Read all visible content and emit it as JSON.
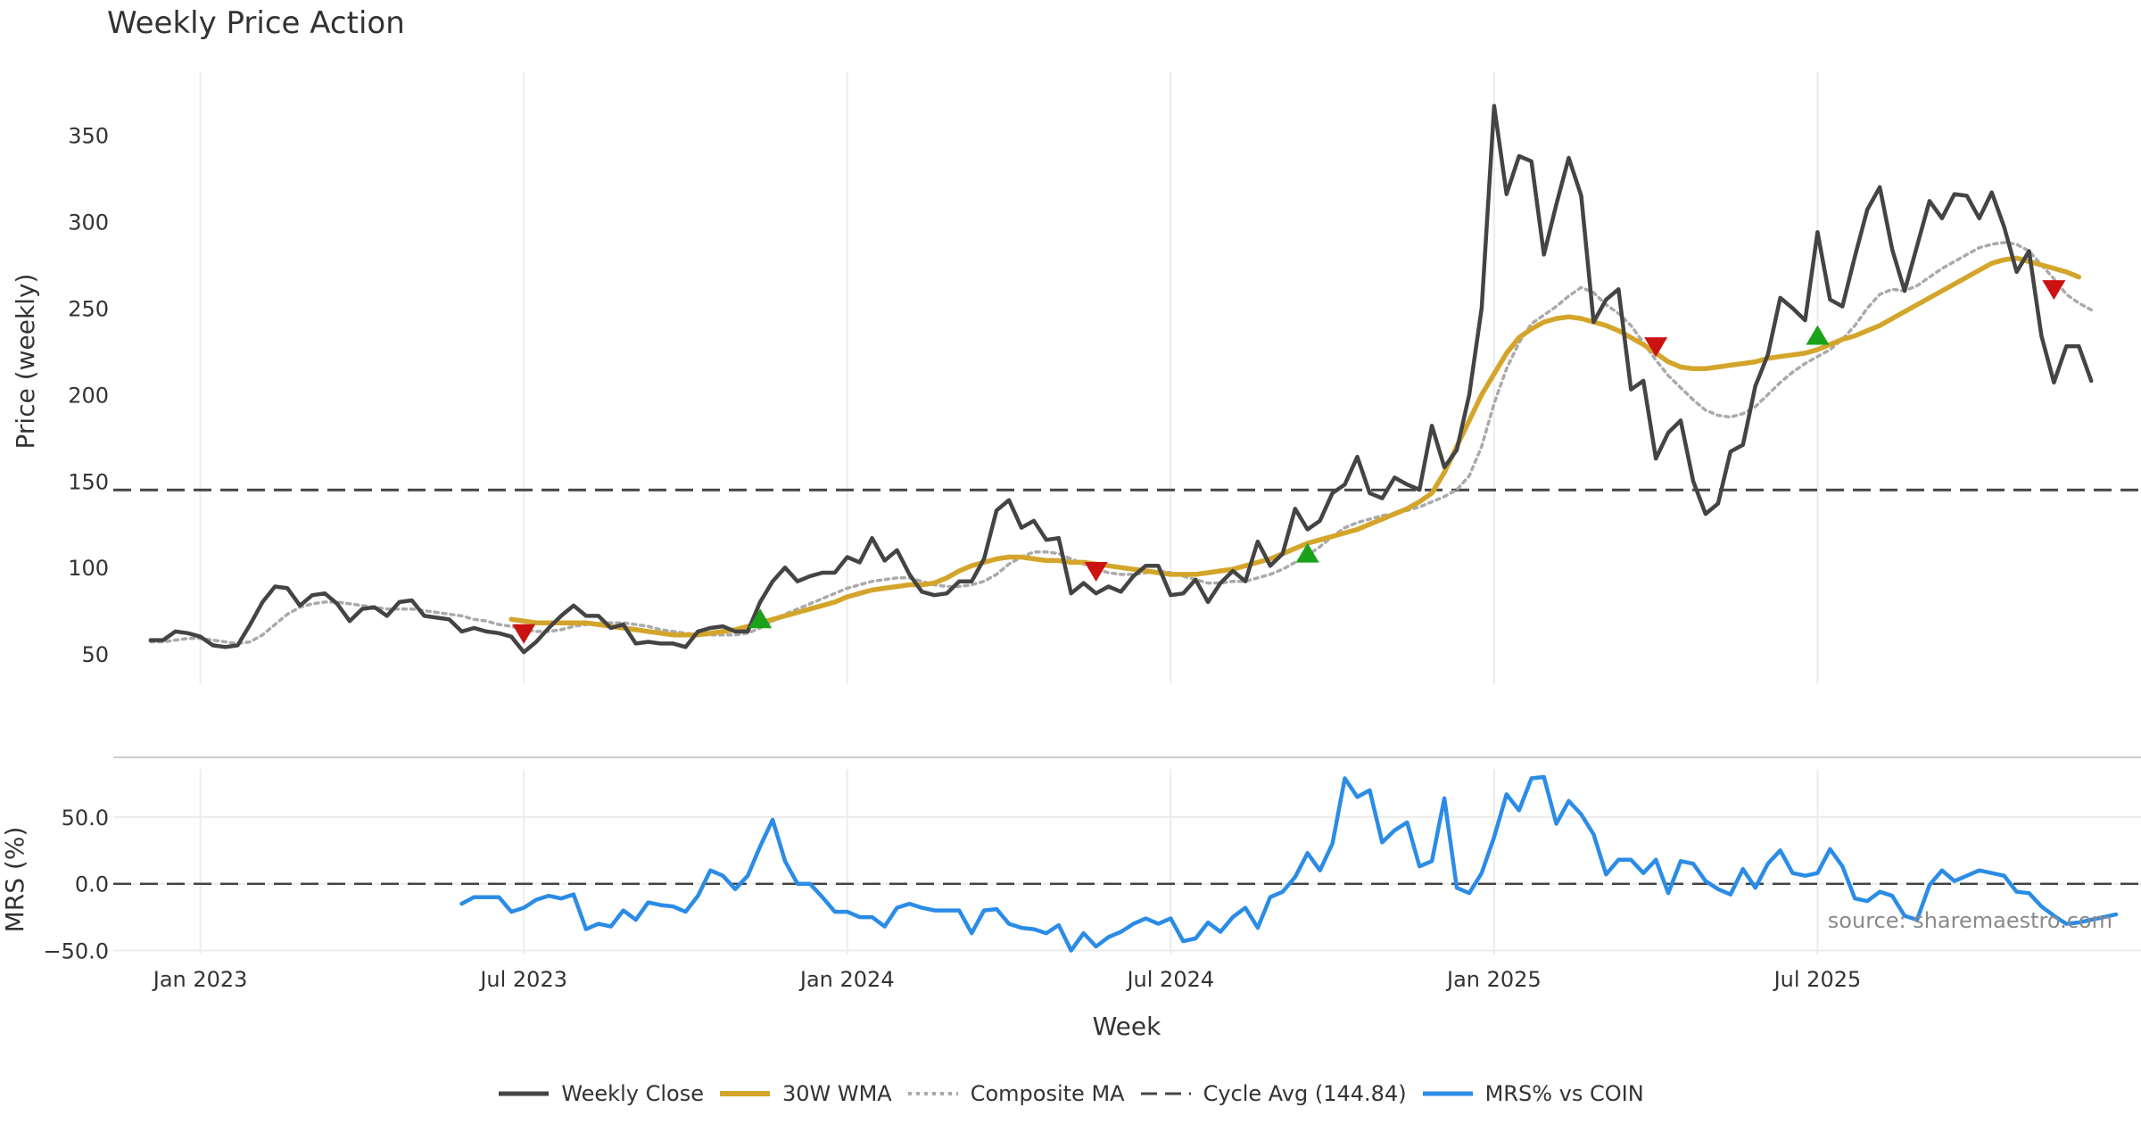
{
  "chart_data": {
    "type": "line",
    "title": "Weekly Price Action",
    "xlabel": "Week",
    "source": "source: sharemaestro.com",
    "x_tick_labels": [
      "Jan 2023",
      "Jul 2023",
      "Jan 2024",
      "Jul 2024",
      "Jan 2025",
      "Jul 2025"
    ],
    "x_ticks_week_index": [
      4,
      30,
      56,
      82,
      108,
      134
    ],
    "x_range_week_index": [
      -3,
      160
    ],
    "price_panel": {
      "ylabel": "Price (weekly)",
      "ylim": [
        33,
        387
      ],
      "y_ticks": [
        50,
        100,
        150,
        200,
        250,
        300,
        350
      ],
      "cycle_avg": 144.84,
      "series": [
        {
          "name": "Weekly Close",
          "color": "#444444",
          "start_index": 0,
          "values": [
            58,
            58,
            63,
            62,
            60,
            55,
            54,
            55,
            67,
            80,
            89,
            88,
            78,
            84,
            85,
            79,
            69,
            76,
            77,
            72,
            80,
            81,
            72,
            71,
            70,
            63,
            65,
            63,
            62,
            60,
            51,
            57,
            65,
            72,
            78,
            72,
            72,
            65,
            67,
            56,
            57,
            56,
            56,
            54,
            63,
            65,
            66,
            63,
            63,
            80,
            92,
            100,
            92,
            95,
            97,
            97,
            106,
            103,
            117,
            104,
            110,
            96,
            86,
            84,
            85,
            92,
            92,
            105,
            133,
            139,
            123,
            127,
            116,
            117,
            85,
            91,
            85,
            89,
            86,
            95,
            101,
            101,
            84,
            85,
            93,
            80,
            91,
            98,
            92,
            115,
            101,
            108,
            134,
            122,
            127,
            143,
            148,
            164,
            143,
            140,
            152,
            148,
            145,
            182,
            158,
            168,
            200,
            250,
            367,
            316,
            338,
            335,
            281,
            310,
            337,
            315,
            242,
            255,
            261,
            203,
            208,
            163,
            178,
            185,
            150,
            131,
            137,
            167,
            171,
            205,
            223,
            256,
            250,
            243,
            294,
            255,
            251,
            280,
            307,
            320,
            284,
            260,
            286,
            312,
            302,
            316,
            315,
            302,
            317,
            297,
            271,
            283,
            234,
            207,
            228,
            228,
            208
          ]
        },
        {
          "name": "30W WMA",
          "color": "#d4a52b",
          "start_index": 29,
          "values": [
            70,
            69,
            68,
            68,
            68,
            68,
            68,
            67,
            66,
            65,
            64,
            63,
            62,
            61,
            61,
            61,
            62,
            63,
            64,
            66,
            68,
            70,
            72,
            74,
            76,
            78,
            80,
            83,
            85,
            87,
            88,
            89,
            90,
            90,
            91,
            94,
            98,
            101,
            103,
            105,
            106,
            106,
            105,
            104,
            104,
            103,
            103,
            102,
            101,
            100,
            99,
            98,
            97,
            96,
            96,
            96,
            97,
            98,
            99,
            101,
            103,
            105,
            108,
            111,
            114,
            116,
            118,
            120,
            122,
            125,
            128,
            131,
            134,
            138,
            143,
            155,
            170,
            185,
            200,
            212,
            224,
            233,
            238,
            242,
            244,
            245,
            244,
            242,
            240,
            237,
            233,
            229,
            224,
            219,
            216,
            215,
            215,
            216,
            217,
            218,
            219,
            221,
            222,
            223,
            224,
            226,
            229,
            232,
            234,
            237,
            240,
            244,
            248,
            252,
            256,
            260,
            264,
            268,
            272,
            276,
            278,
            279,
            277,
            275,
            273,
            271,
            268
          ]
        },
        {
          "name": "Composite MA",
          "color": "#aaaaaa",
          "start_index": 0,
          "values": [
            57,
            57,
            58,
            59,
            59,
            58,
            57,
            56,
            57,
            61,
            67,
            73,
            77,
            79,
            80,
            80,
            79,
            78,
            77,
            76,
            76,
            76,
            75,
            74,
            73,
            72,
            70,
            69,
            67,
            66,
            64,
            63,
            63,
            64,
            66,
            67,
            68,
            68,
            68,
            67,
            66,
            64,
            63,
            62,
            61,
            61,
            61,
            61,
            62,
            65,
            69,
            73,
            76,
            79,
            82,
            85,
            88,
            90,
            92,
            93,
            94,
            94,
            92,
            90,
            89,
            89,
            90,
            92,
            96,
            102,
            106,
            109,
            109,
            108,
            105,
            102,
            99,
            97,
            96,
            96,
            97,
            98,
            97,
            95,
            93,
            91,
            91,
            92,
            92,
            94,
            96,
            99,
            103,
            107,
            112,
            118,
            123,
            126,
            128,
            130,
            131,
            133,
            135,
            138,
            141,
            145,
            153,
            170,
            195,
            215,
            230,
            241,
            246,
            251,
            257,
            262,
            259,
            252,
            247,
            240,
            230,
            220,
            211,
            204,
            197,
            191,
            188,
            187,
            189,
            193,
            200,
            207,
            213,
            218,
            222,
            226,
            232,
            240,
            250,
            258,
            261,
            260,
            263,
            268,
            273,
            277,
            281,
            285,
            287,
            288,
            287,
            283,
            275,
            267,
            258,
            253,
            249
          ]
        }
      ],
      "buy_signals": [
        {
          "i": 49,
          "v": 70
        },
        {
          "i": 93,
          "v": 108
        },
        {
          "i": 134,
          "v": 234
        }
      ],
      "sell_signals": [
        {
          "i": 30,
          "v": 62
        },
        {
          "i": 76,
          "v": 98
        },
        {
          "i": 121,
          "v": 228
        },
        {
          "i": 153,
          "v": 261
        }
      ]
    },
    "mrs_panel": {
      "ylabel": "MRS (%)",
      "ylim": [
        -53,
        86
      ],
      "y_ticks": [
        50.0,
        0.0,
        -50.0
      ],
      "y_tick_labels": [
        "50.0",
        "0.0",
        "−50.0"
      ],
      "reference": 0,
      "series": [
        {
          "name": "MRS% vs COIN",
          "color": "#2b8ce6",
          "start_index": 25,
          "values": [
            -15,
            -10,
            -10,
            -10,
            -21,
            -18,
            -12,
            -9,
            -11,
            -8,
            -34,
            -30,
            -32,
            -20,
            -27,
            -14,
            -16,
            -17,
            -21,
            -9,
            10,
            6,
            -4,
            6,
            28,
            48,
            17,
            0,
            0,
            -10,
            -21,
            -21,
            -25,
            -25,
            -32,
            -18,
            -15,
            -18,
            -20,
            -20,
            -20,
            -37,
            -20,
            -19,
            -30,
            -33,
            -34,
            -37,
            -31,
            -50,
            -37,
            -47,
            -40,
            -36,
            -30,
            -26,
            -30,
            -26,
            -43,
            -41,
            -29,
            -36,
            -25,
            -18,
            -33,
            -10,
            -6,
            5,
            23,
            10,
            30,
            79,
            65,
            70,
            31,
            40,
            46,
            13,
            17,
            64,
            -3,
            -7,
            8,
            35,
            67,
            55,
            79,
            80,
            45,
            62,
            52,
            37,
            7,
            18,
            18,
            8,
            18,
            -7,
            17,
            15,
            2,
            -4,
            -8,
            11,
            -3,
            15,
            25,
            8,
            6,
            8,
            26,
            13,
            -11,
            -13,
            -6,
            -9,
            -24,
            -27,
            -1,
            10,
            2,
            6,
            10,
            8,
            6,
            -6,
            -7,
            -17,
            -24,
            -30,
            -29,
            -27,
            -25,
            -23
          ]
        }
      ]
    }
  },
  "legend": [
    {
      "label": "Weekly Close",
      "color": "#444444",
      "style": "solid"
    },
    {
      "label": "30W WMA",
      "color": "#d4a52b",
      "style": "solid-thick"
    },
    {
      "label": "Composite MA",
      "color": "#aaaaaa",
      "style": "dotted"
    },
    {
      "label": "Cycle Avg (144.84)",
      "color": "#444444",
      "style": "dashed"
    },
    {
      "label": "MRS% vs COIN",
      "color": "#2b8ce6",
      "style": "solid"
    }
  ],
  "colors": {
    "buy_signal": "#1aa31a",
    "sell_signal": "#cc1111",
    "grid": "#ececec",
    "separator": "#cccccc"
  }
}
